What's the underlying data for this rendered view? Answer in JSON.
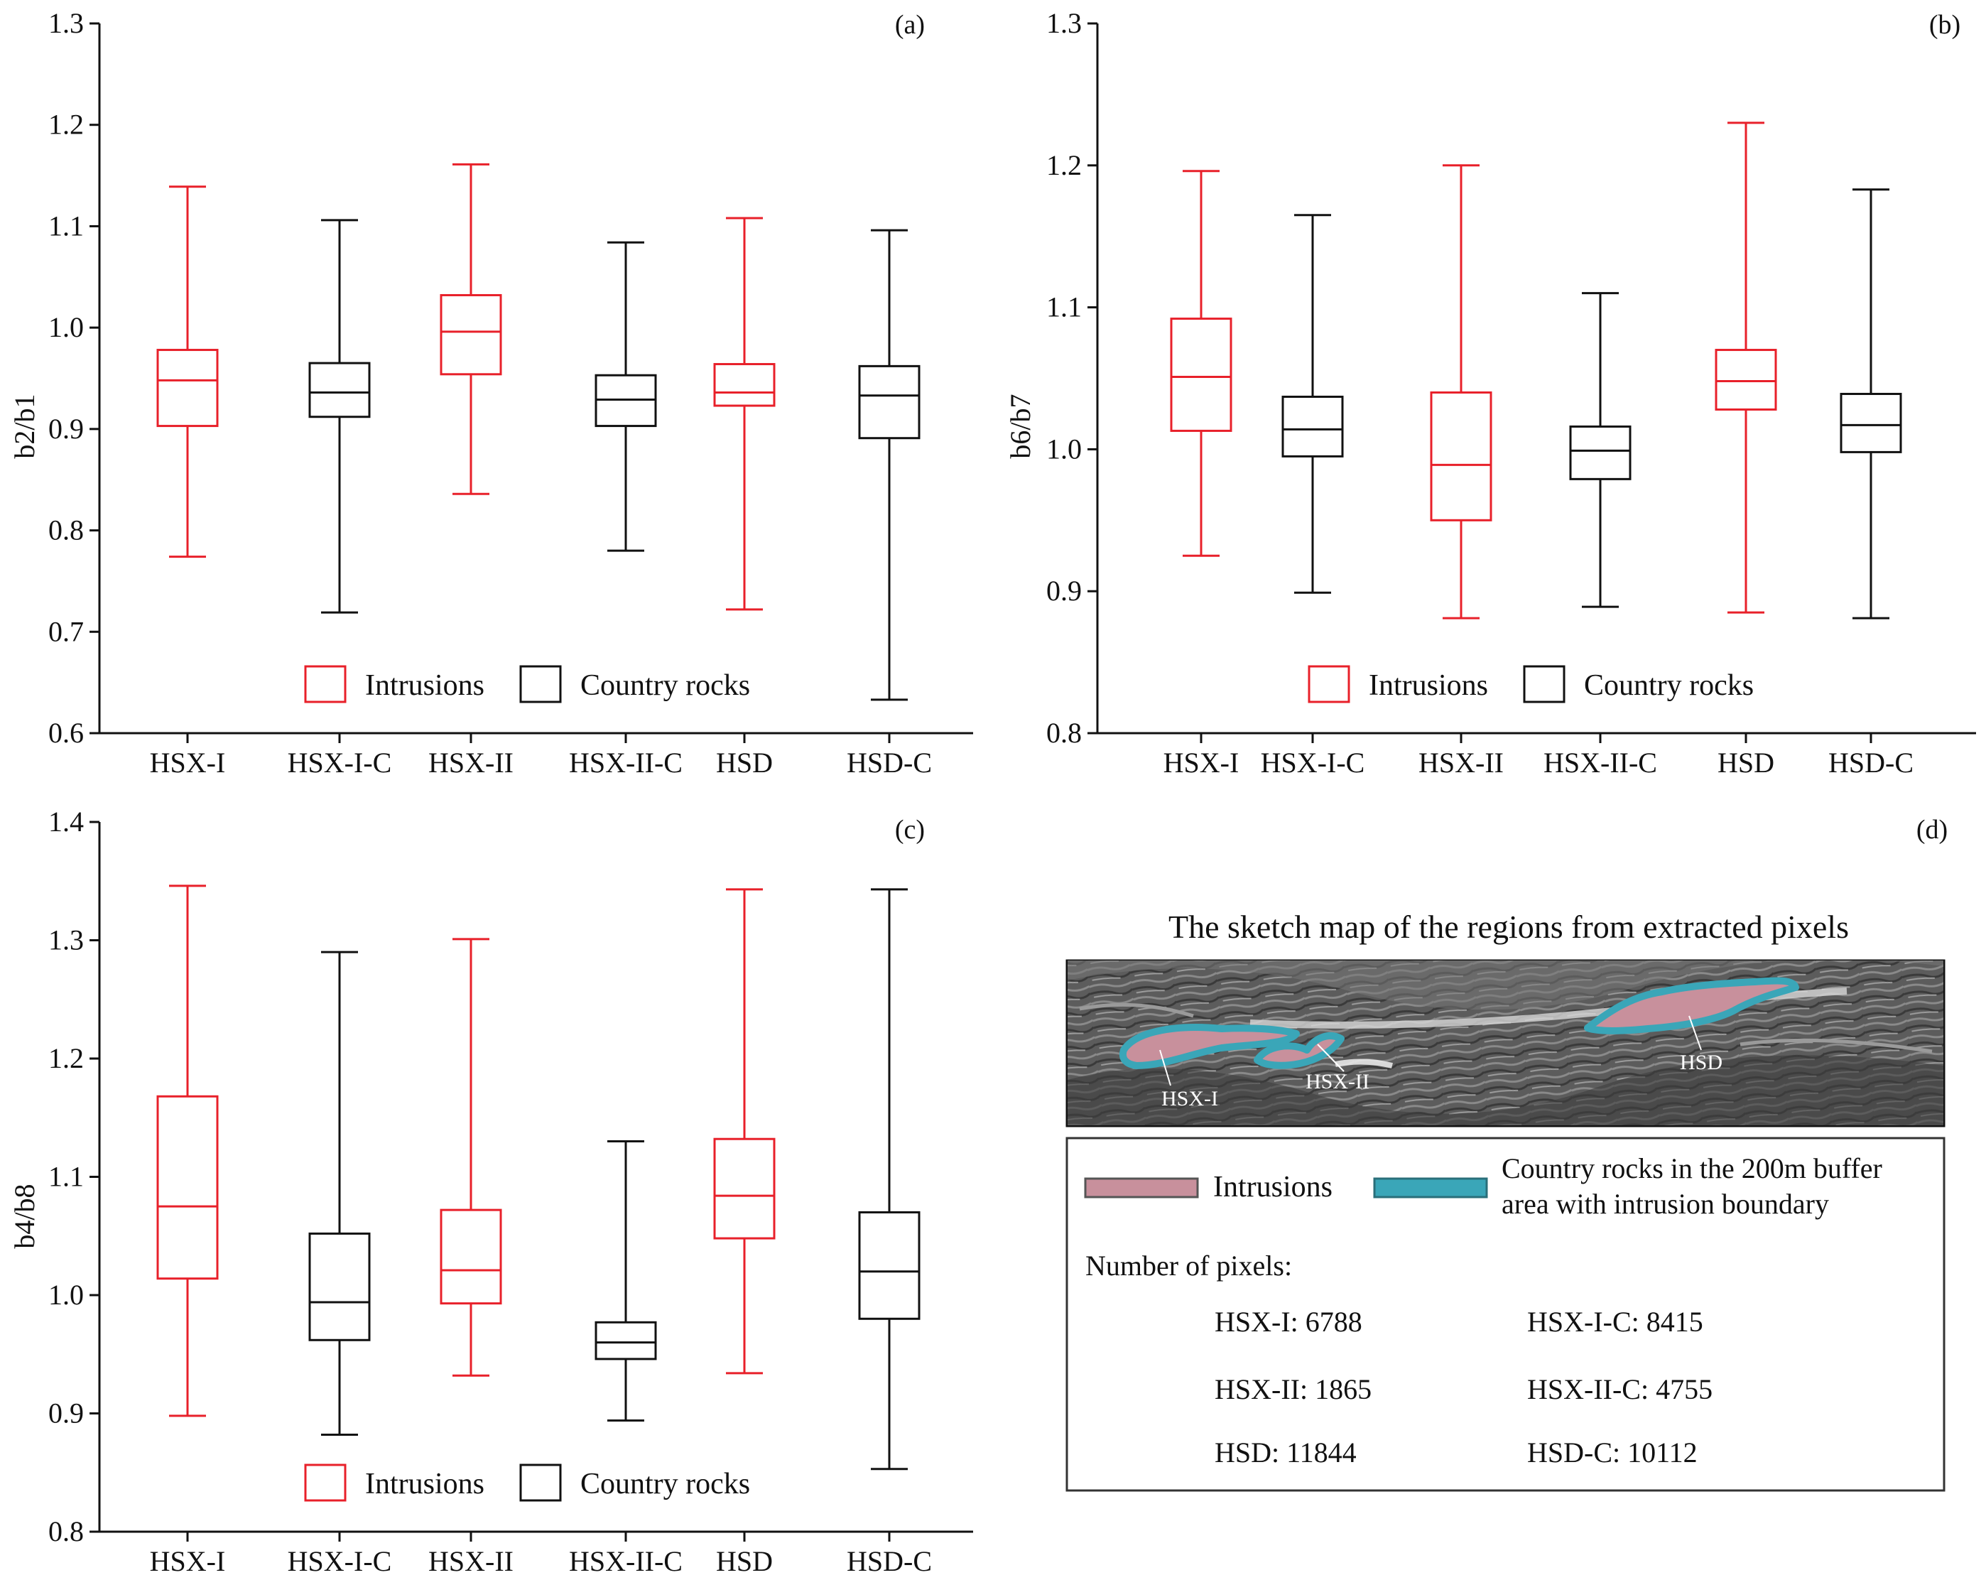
{
  "colors": {
    "intrusion": "#e8202a",
    "country_rock": "#111111",
    "intrusion_fill": "#c8909c",
    "buffer": "#3aa6b8"
  },
  "legend": {
    "intrusions": "Intrusions",
    "country_rocks": "Country rocks"
  },
  "chart_data": [
    {
      "panel": "(a)",
      "type": "box",
      "ylabel": "b2/b1",
      "xlabel": "",
      "ylim": [
        0.6,
        1.3
      ],
      "yticks": [
        "0.6",
        "0.7",
        "0.8",
        "0.9",
        "1.0",
        "1.1",
        "1.2",
        "1.3"
      ],
      "categories": [
        "HSX-I",
        "HSX-I-C",
        "HSX-II",
        "HSX-II-C",
        "HSD",
        "HSD-C"
      ],
      "groups": [
        "intrusion",
        "country_rock",
        "intrusion",
        "country_rock",
        "intrusion",
        "country_rock"
      ],
      "boxes": [
        {
          "min": 0.774,
          "q1": 0.903,
          "median": 0.948,
          "q3": 0.978,
          "max": 1.139
        },
        {
          "min": 0.719,
          "q1": 0.912,
          "median": 0.936,
          "q3": 0.965,
          "max": 1.106
        },
        {
          "min": 0.836,
          "q1": 0.954,
          "median": 0.996,
          "q3": 1.032,
          "max": 1.161
        },
        {
          "min": 0.78,
          "q1": 0.903,
          "median": 0.929,
          "q3": 0.953,
          "max": 1.084
        },
        {
          "min": 0.722,
          "q1": 0.923,
          "median": 0.936,
          "q3": 0.964,
          "max": 1.108
        },
        {
          "min": 0.633,
          "q1": 0.891,
          "median": 0.933,
          "q3": 0.962,
          "max": 1.096
        }
      ]
    },
    {
      "panel": "(b)",
      "type": "box",
      "ylabel": "b6/b7",
      "xlabel": "",
      "ylim": [
        0.8,
        1.3
      ],
      "yticks": [
        "0.8",
        "0.9",
        "1.0",
        "1.1",
        "1.2",
        "1.3"
      ],
      "categories": [
        "HSX-I",
        "HSX-I-C",
        "HSX-II",
        "HSX-II-C",
        "HSD",
        "HSD-C"
      ],
      "groups": [
        "intrusion",
        "country_rock",
        "intrusion",
        "country_rock",
        "intrusion",
        "country_rock"
      ],
      "boxes": [
        {
          "min": 0.925,
          "q1": 1.013,
          "median": 1.051,
          "q3": 1.092,
          "max": 1.196
        },
        {
          "min": 0.899,
          "q1": 0.995,
          "median": 1.014,
          "q3": 1.037,
          "max": 1.165
        },
        {
          "min": 0.881,
          "q1": 0.95,
          "median": 0.989,
          "q3": 1.04,
          "max": 1.2
        },
        {
          "min": 0.889,
          "q1": 0.979,
          "median": 0.999,
          "q3": 1.016,
          "max": 1.11
        },
        {
          "min": 0.885,
          "q1": 1.028,
          "median": 1.048,
          "q3": 1.07,
          "max": 1.23
        },
        {
          "min": 0.881,
          "q1": 0.998,
          "median": 1.017,
          "q3": 1.039,
          "max": 1.183
        }
      ]
    },
    {
      "panel": "(c)",
      "type": "box",
      "ylabel": "b4/b8",
      "xlabel": "",
      "ylim": [
        0.8,
        1.4
      ],
      "yticks": [
        "0.8",
        "0.9",
        "1.0",
        "1.1",
        "1.2",
        "1.3",
        "1.4"
      ],
      "categories": [
        "HSX-I",
        "HSX-I-C",
        "HSX-II",
        "HSX-II-C",
        "HSD",
        "HSD-C"
      ],
      "groups": [
        "intrusion",
        "country_rock",
        "intrusion",
        "country_rock",
        "intrusion",
        "country_rock"
      ],
      "boxes": [
        {
          "min": 0.898,
          "q1": 1.014,
          "median": 1.075,
          "q3": 1.168,
          "max": 1.346
        },
        {
          "min": 0.882,
          "q1": 0.962,
          "median": 0.994,
          "q3": 1.052,
          "max": 1.29
        },
        {
          "min": 0.932,
          "q1": 0.993,
          "median": 1.021,
          "q3": 1.072,
          "max": 1.301
        },
        {
          "min": 0.894,
          "q1": 0.946,
          "median": 0.96,
          "q3": 0.977,
          "max": 1.13
        },
        {
          "min": 0.934,
          "q1": 1.048,
          "median": 1.084,
          "q3": 1.132,
          "max": 1.343
        },
        {
          "min": 0.853,
          "q1": 0.98,
          "median": 1.02,
          "q3": 1.07,
          "max": 1.343
        }
      ]
    }
  ],
  "panel_d": {
    "letter": "(d)",
    "title": "The sketch map of the regions from extracted pixels",
    "map_labels": [
      "HSX-I",
      "HSX-II",
      "HSD"
    ],
    "legend_intrusions": "Intrusions",
    "legend_buffer_line1": "Country rocks in the 200m  buffer",
    "legend_buffer_line2": "area with intrusion boundary",
    "pixels_heading": "Number of pixels:",
    "counts": [
      "HSX-I: 6788",
      "HSX-I-C: 8415",
      "HSX-II: 1865",
      "HSX-II-C: 4755",
      "HSD: 11844",
      "HSD-C: 10112"
    ]
  }
}
